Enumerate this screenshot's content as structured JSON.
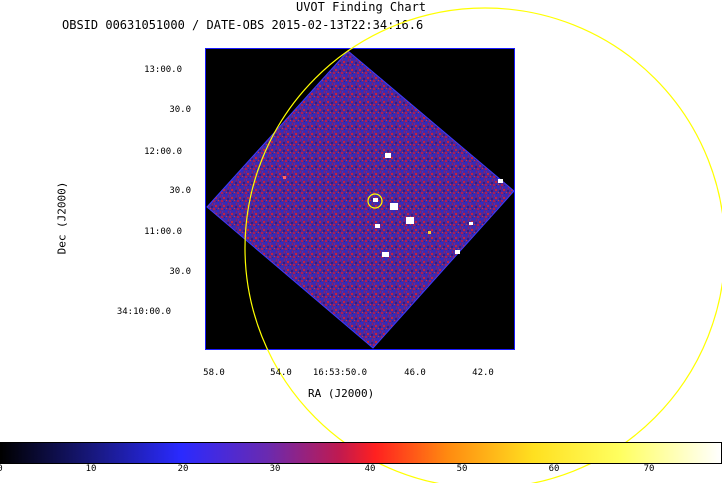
{
  "title": "UVOT Finding Chart",
  "subtitle": "OBSID 00631051000 / DATE-OBS 2015-02-13T22:34:16.6",
  "axes": {
    "ylabel": "Dec (J2000)",
    "xlabel": "RA (J2000)",
    "dec_ticks": [
      "13:00.0",
      "30.0",
      "12:00.0",
      "30.0",
      "11:00.0",
      "30.0",
      "34:10:00.0"
    ],
    "ra_ticks": [
      "58.0",
      "54.0",
      "16:53:50.0",
      "46.0",
      "42.0"
    ]
  },
  "colorbar": {
    "ticks": [
      "0",
      "10",
      "20",
      "30",
      "40",
      "50",
      "60",
      "70"
    ]
  },
  "colors": {
    "image_background": "#000000",
    "frame_border": "#1a1aff",
    "circle": "#ffff00",
    "source_marker": "#ffffff"
  }
}
